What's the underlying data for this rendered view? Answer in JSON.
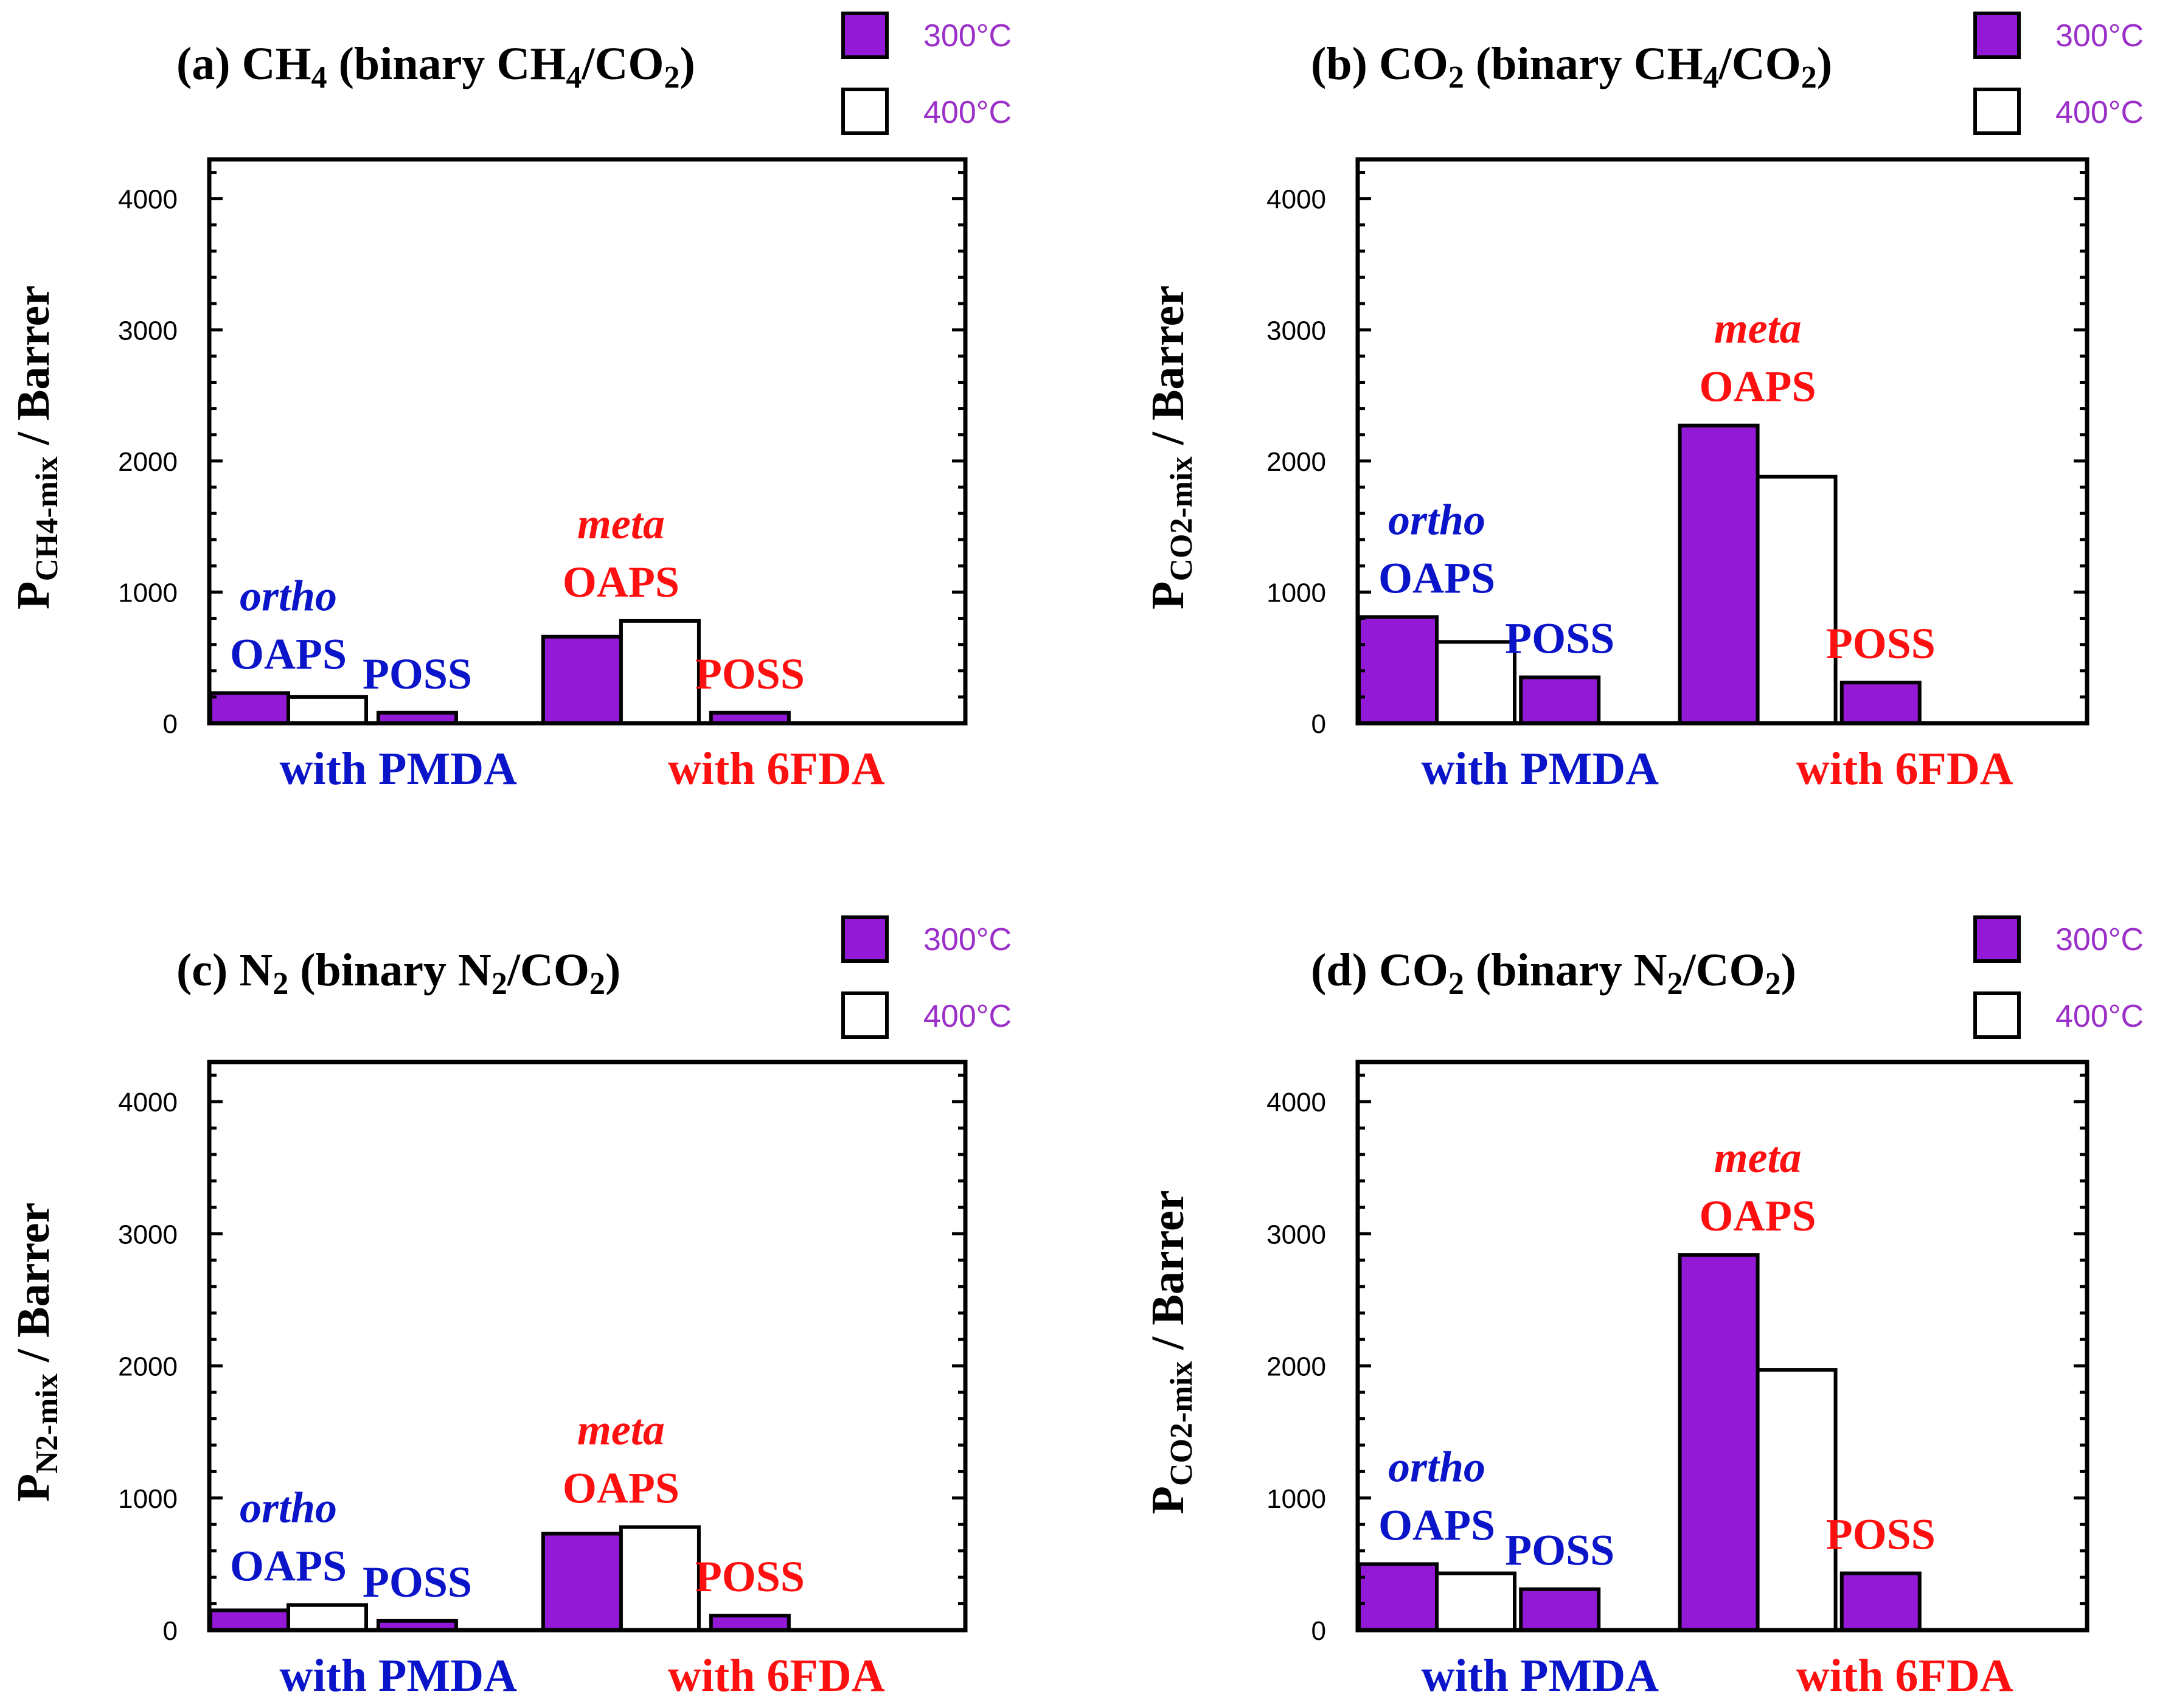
{
  "colors": {
    "bar300": "#9419d6",
    "bar400": "#ffffff",
    "pmda": "#0a14c8",
    "fda": "#ff1010",
    "legend_text": "#9b30c8"
  },
  "legend": {
    "label_300": "300°C",
    "label_400": "400°C"
  },
  "groups": {
    "pmda": "with PMDA",
    "fda": "with 6FDA"
  },
  "ylabel_suffix": " / Barrer",
  "chart_data": [
    {
      "type": "bar",
      "title": "(a) CH4 (binary CH4/CO2)",
      "title_runs": [
        [
          "(a) CH",
          0
        ],
        [
          "4",
          1
        ],
        [
          " (binary CH",
          0
        ],
        [
          "4",
          1
        ],
        [
          "/CO",
          0
        ],
        [
          "2",
          1
        ],
        [
          ")",
          0
        ]
      ],
      "ylabel_main": "P",
      "ylabel_sub": "CH4-mix",
      "ylim": [
        0,
        4300
      ],
      "yticks": [
        0,
        1000,
        2000,
        3000,
        4000
      ],
      "categories": [
        "ortho OAPS with PMDA",
        "POSS with PMDA",
        "meta OAPS with 6FDA",
        "POSS with 6FDA"
      ],
      "series": [
        {
          "name": "300°C",
          "values": [
            230,
            80,
            660,
            80
          ]
        },
        {
          "name": "400°C",
          "values": [
            200,
            null,
            780,
            null
          ]
        }
      ],
      "annotations": [
        {
          "italic": "ortho",
          "text": "OAPS",
          "group": "pmda"
        },
        {
          "italic": "",
          "text": "POSS",
          "group": "pmda"
        },
        {
          "italic": "meta",
          "text": "OAPS",
          "group": "fda"
        },
        {
          "italic": "",
          "text": "POSS",
          "group": "fda"
        }
      ]
    },
    {
      "type": "bar",
      "title": "(b) CO2 (binary CH4/CO2)",
      "title_runs": [
        [
          "(b) CO",
          0
        ],
        [
          "2",
          1
        ],
        [
          " (binary CH",
          0
        ],
        [
          "4",
          1
        ],
        [
          "/CO",
          0
        ],
        [
          "2",
          1
        ],
        [
          ")",
          0
        ]
      ],
      "ylabel_main": "P",
      "ylabel_sub": "CO2-mix",
      "ylim": [
        0,
        4300
      ],
      "yticks": [
        0,
        1000,
        2000,
        3000,
        4000
      ],
      "categories": [
        "ortho OAPS with PMDA",
        "POSS with PMDA",
        "meta OAPS with 6FDA",
        "POSS with 6FDA"
      ],
      "series": [
        {
          "name": "300°C",
          "values": [
            810,
            350,
            2270,
            310
          ]
        },
        {
          "name": "400°C",
          "values": [
            620,
            null,
            1880,
            null
          ]
        }
      ],
      "annotations": [
        {
          "italic": "ortho",
          "text": "OAPS",
          "group": "pmda"
        },
        {
          "italic": "",
          "text": "POSS",
          "group": "pmda"
        },
        {
          "italic": "meta",
          "text": "OAPS",
          "group": "fda"
        },
        {
          "italic": "",
          "text": "POSS",
          "group": "fda"
        }
      ]
    },
    {
      "type": "bar",
      "title": "(c) N2 (binary N2/CO2)",
      "title_runs": [
        [
          "(c) N",
          0
        ],
        [
          "2",
          1
        ],
        [
          " (binary N",
          0
        ],
        [
          "2",
          1
        ],
        [
          "/CO",
          0
        ],
        [
          "2",
          1
        ],
        [
          ")",
          0
        ]
      ],
      "ylabel_main": "P",
      "ylabel_sub": "N2-mix",
      "ylim": [
        0,
        4300
      ],
      "yticks": [
        0,
        1000,
        2000,
        3000,
        4000
      ],
      "categories": [
        "ortho OAPS with PMDA",
        "POSS with PMDA",
        "meta OAPS with 6FDA",
        "POSS with 6FDA"
      ],
      "series": [
        {
          "name": "300°C",
          "values": [
            150,
            70,
            730,
            110
          ]
        },
        {
          "name": "400°C",
          "values": [
            190,
            null,
            780,
            null
          ]
        }
      ],
      "annotations": [
        {
          "italic": "ortho",
          "text": "OAPS",
          "group": "pmda"
        },
        {
          "italic": "",
          "text": "POSS",
          "group": "pmda"
        },
        {
          "italic": "meta",
          "text": "OAPS",
          "group": "fda"
        },
        {
          "italic": "",
          "text": "POSS",
          "group": "fda"
        }
      ]
    },
    {
      "type": "bar",
      "title": "(d) CO2 (binary N2/CO2)",
      "title_runs": [
        [
          "(d) CO",
          0
        ],
        [
          "2",
          1
        ],
        [
          " (binary N",
          0
        ],
        [
          "2",
          1
        ],
        [
          "/CO",
          0
        ],
        [
          "2",
          1
        ],
        [
          ")",
          0
        ]
      ],
      "ylabel_main": "P",
      "ylabel_sub": "CO2-mix",
      "ylim": [
        0,
        4300
      ],
      "yticks": [
        0,
        1000,
        2000,
        3000,
        4000
      ],
      "categories": [
        "ortho OAPS with PMDA",
        "POSS with PMDA",
        "meta OAPS with 6FDA",
        "POSS with 6FDA"
      ],
      "series": [
        {
          "name": "300°C",
          "values": [
            500,
            310,
            2840,
            430
          ]
        },
        {
          "name": "400°C",
          "values": [
            430,
            null,
            1970,
            null
          ]
        }
      ],
      "annotations": [
        {
          "italic": "ortho",
          "text": "OAPS",
          "group": "pmda"
        },
        {
          "italic": "",
          "text": "POSS",
          "group": "pmda"
        },
        {
          "italic": "meta",
          "text": "OAPS",
          "group": "fda"
        },
        {
          "italic": "",
          "text": "POSS",
          "group": "fda"
        }
      ]
    }
  ]
}
